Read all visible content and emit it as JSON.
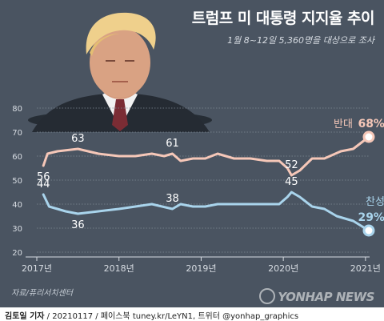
{
  "header": {
    "title": "트럼프 미 대통령 지지율 추이",
    "subtitle": "1월 8~12일 5,360명을 대상으로 조사"
  },
  "footer": {
    "source": "자료/퓨리서치센터",
    "watermark": "YONHAP NEWS",
    "credit_author": "김토일 기자",
    "credit_rest": " / 20210117 / 페이스북 tuney.kr/LeYN1, 트위터 @yonhap_graphics"
  },
  "colors": {
    "background": "#4a5461",
    "oppose": "#f5c7b8",
    "support": "#a9d4ec",
    "grid": "#7e8894",
    "axis_text": "#d7dce2"
  },
  "chart_data": {
    "type": "line",
    "title": "트럼프 미 대통령 지지율 추이",
    "ylim": [
      20,
      80
    ],
    "yticks": [
      20,
      30,
      40,
      50,
      60,
      70,
      80
    ],
    "xlim": [
      2017.0,
      2021.05
    ],
    "xticks": [
      {
        "value": 2017,
        "label": "2017년"
      },
      {
        "value": 2018,
        "label": "2018년"
      },
      {
        "value": 2019,
        "label": "2019년"
      },
      {
        "value": 2020,
        "label": "2020년"
      },
      {
        "value": 2021,
        "label": "2021년"
      }
    ],
    "grid": true,
    "series": [
      {
        "name": "반대",
        "color": "#f5c7b8",
        "end_label": "68%",
        "points": [
          [
            2017.08,
            56
          ],
          [
            2017.13,
            61
          ],
          [
            2017.25,
            62
          ],
          [
            2017.5,
            63
          ],
          [
            2017.75,
            61
          ],
          [
            2018.0,
            60
          ],
          [
            2018.2,
            60
          ],
          [
            2018.4,
            61
          ],
          [
            2018.55,
            60
          ],
          [
            2018.65,
            61
          ],
          [
            2018.75,
            58
          ],
          [
            2018.9,
            59
          ],
          [
            2019.05,
            59
          ],
          [
            2019.2,
            61
          ],
          [
            2019.4,
            59
          ],
          [
            2019.6,
            59
          ],
          [
            2019.8,
            58
          ],
          [
            2019.95,
            58
          ],
          [
            2020.05,
            55
          ],
          [
            2020.1,
            52
          ],
          [
            2020.2,
            54
          ],
          [
            2020.35,
            59
          ],
          [
            2020.5,
            59
          ],
          [
            2020.7,
            62
          ],
          [
            2020.85,
            63
          ],
          [
            2021.04,
            68
          ]
        ],
        "labels": [
          {
            "x": 2017.08,
            "y": 56,
            "text": "56"
          },
          {
            "x": 2017.5,
            "y": 63,
            "text": "63"
          },
          {
            "x": 2018.65,
            "y": 61,
            "text": "61"
          },
          {
            "x": 2020.1,
            "y": 52,
            "text": "52"
          }
        ]
      },
      {
        "name": "찬성",
        "color": "#a9d4ec",
        "end_label": "29%",
        "points": [
          [
            2017.08,
            44
          ],
          [
            2017.15,
            39
          ],
          [
            2017.35,
            37
          ],
          [
            2017.5,
            36
          ],
          [
            2017.75,
            37
          ],
          [
            2018.0,
            38
          ],
          [
            2018.2,
            39
          ],
          [
            2018.4,
            40
          ],
          [
            2018.65,
            38
          ],
          [
            2018.75,
            40
          ],
          [
            2018.9,
            39
          ],
          [
            2019.05,
            39
          ],
          [
            2019.2,
            40
          ],
          [
            2019.4,
            40
          ],
          [
            2019.6,
            40
          ],
          [
            2019.8,
            40
          ],
          [
            2019.95,
            40
          ],
          [
            2020.05,
            43
          ],
          [
            2020.1,
            45
          ],
          [
            2020.2,
            43
          ],
          [
            2020.35,
            39
          ],
          [
            2020.5,
            38
          ],
          [
            2020.65,
            35
          ],
          [
            2020.85,
            33
          ],
          [
            2021.04,
            29
          ]
        ],
        "labels": [
          {
            "x": 2017.08,
            "y": 44,
            "text": "44"
          },
          {
            "x": 2017.5,
            "y": 36,
            "text": "36"
          },
          {
            "x": 2018.65,
            "y": 38,
            "text": "38"
          },
          {
            "x": 2020.1,
            "y": 45,
            "text": "45"
          }
        ]
      }
    ]
  }
}
